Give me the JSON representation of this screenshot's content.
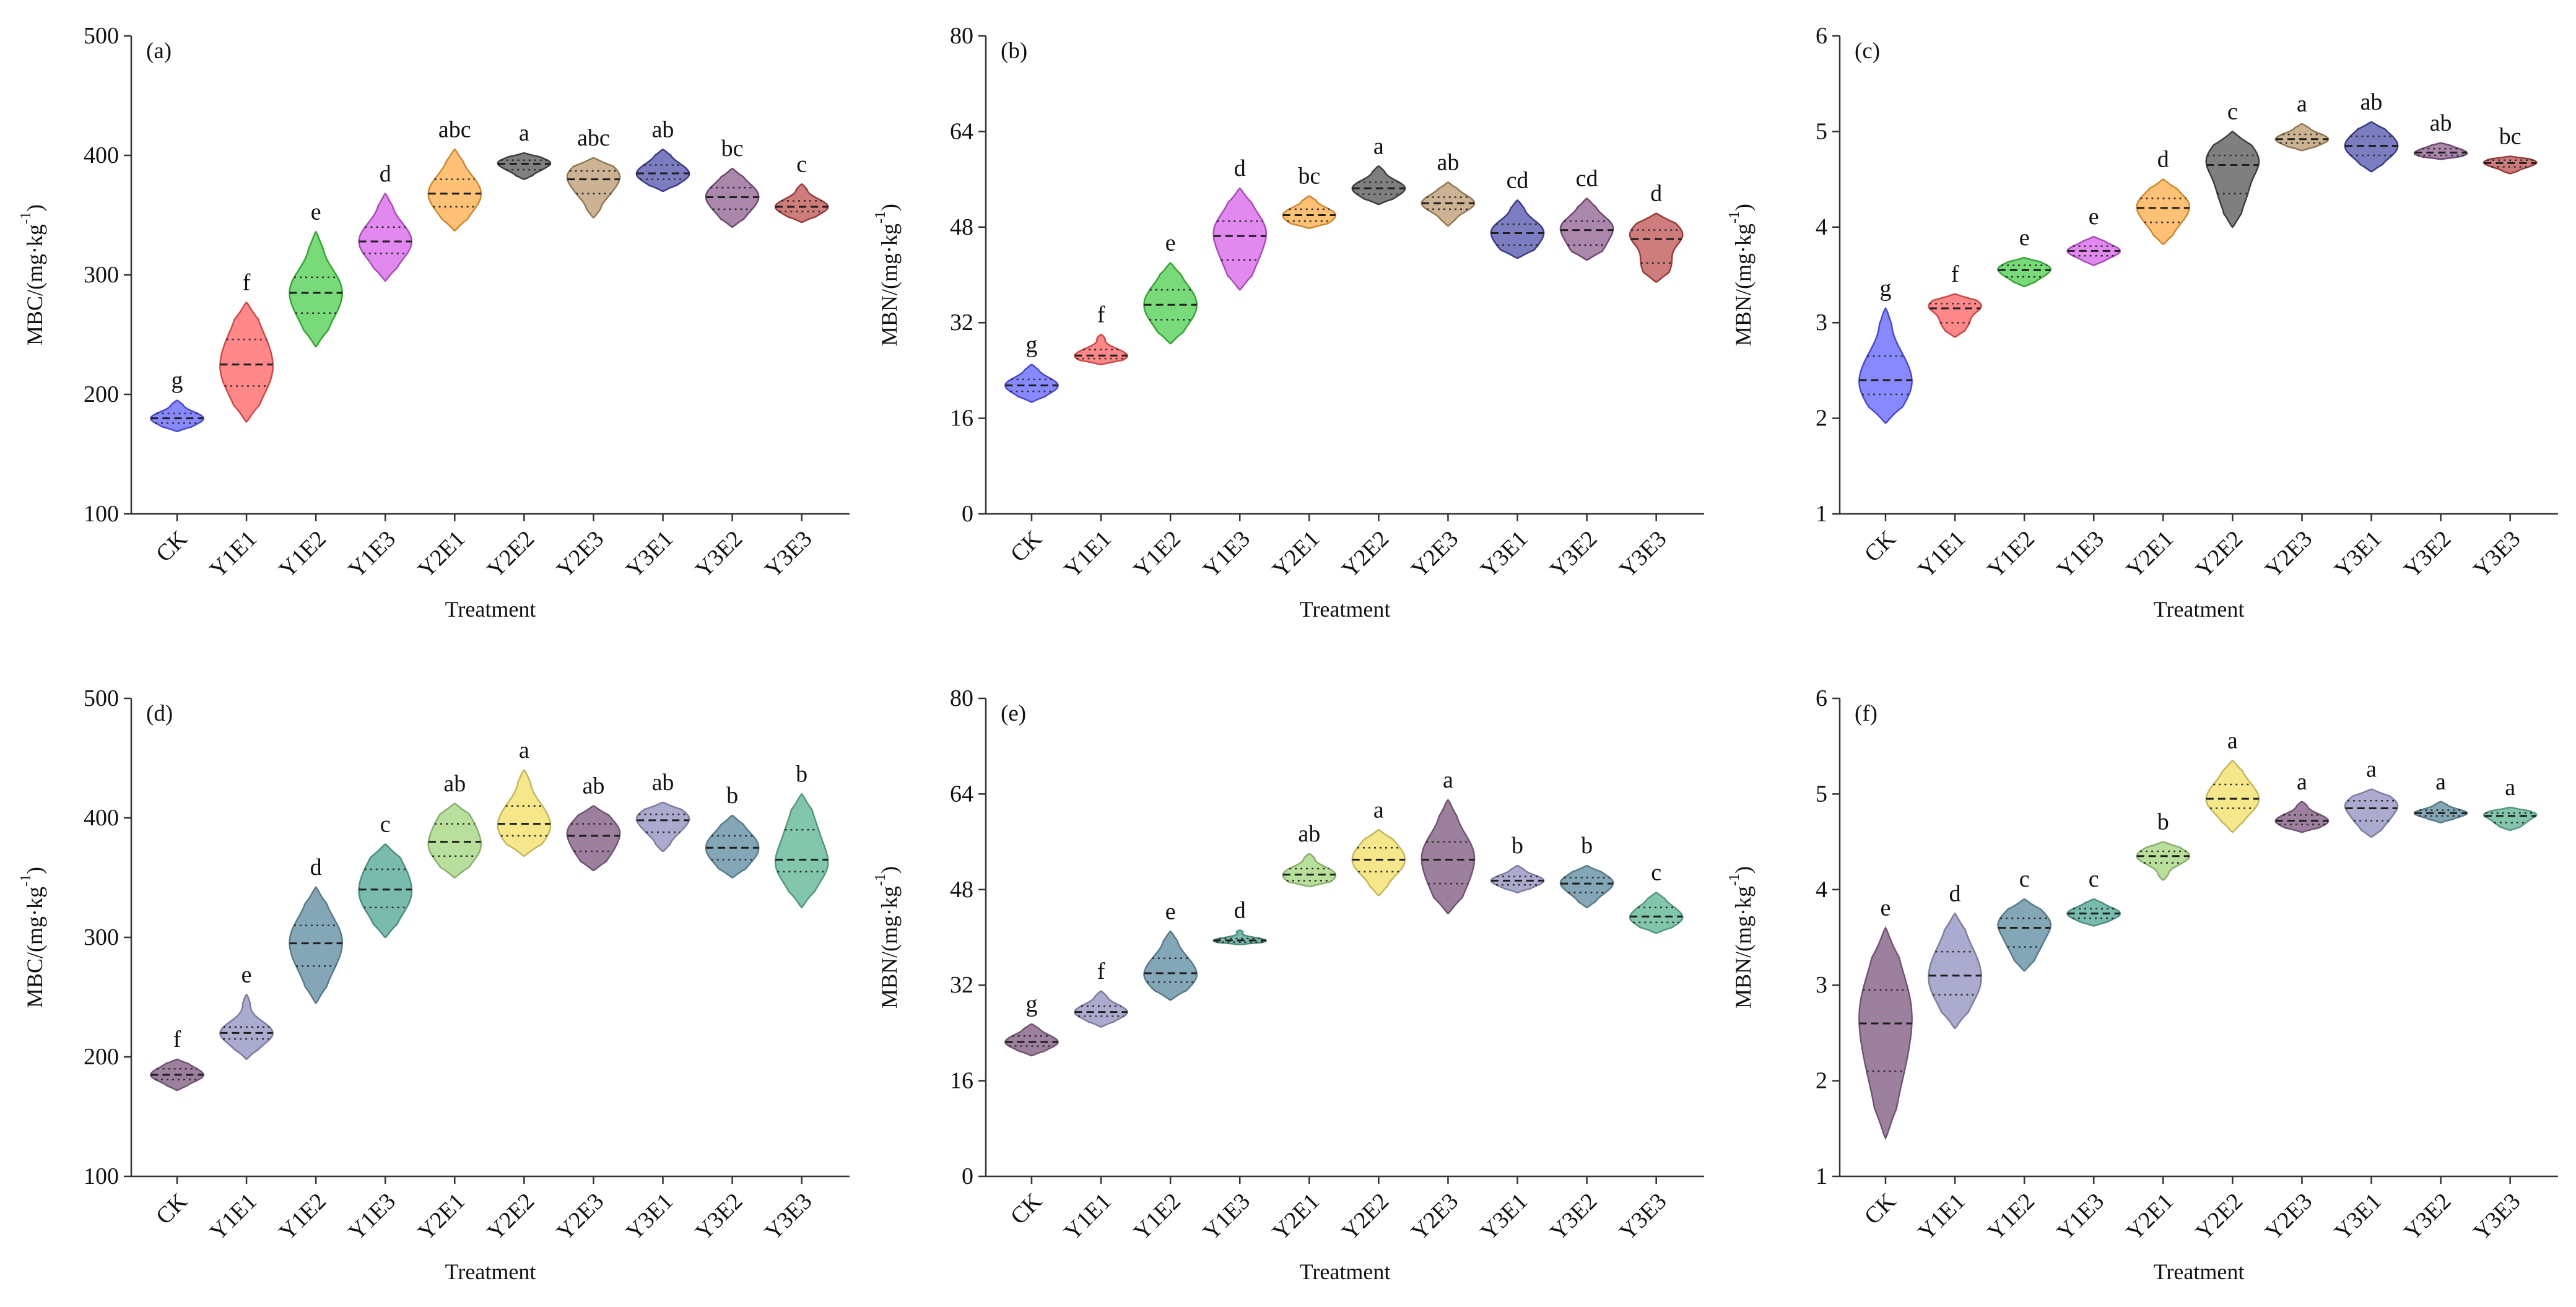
{
  "chart_data": [
    {
      "type": "area",
      "panel_label": "(a)",
      "xlabel": "Treatment",
      "ylabel": {
        "main": "MBC/(mg·kg",
        "sup": "-1",
        "end": ")"
      },
      "ylim": [
        100,
        500
      ],
      "yticks": [
        100,
        200,
        300,
        400,
        500
      ],
      "categories": [
        "CK",
        "Y1E1",
        "Y1E2",
        "Y1E3",
        "Y2E1",
        "Y2E2",
        "Y2E3",
        "Y3E1",
        "Y3E2",
        "Y3E3"
      ],
      "violins": [
        {
          "min": 169,
          "q1": 176,
          "median": 180,
          "q3": 184,
          "max": 195,
          "letter": "g",
          "color": "#5b5bff"
        },
        {
          "min": 177,
          "q1": 207,
          "median": 225,
          "q3": 246,
          "max": 277,
          "letter": "f",
          "color": "#ff5a5a"
        },
        {
          "min": 240,
          "q1": 268,
          "median": 285,
          "q3": 298,
          "max": 336,
          "letter": "e",
          "color": "#44cc44"
        },
        {
          "min": 295,
          "q1": 318,
          "median": 328,
          "q3": 340,
          "max": 368,
          "letter": "d",
          "color": "#d65ce8"
        },
        {
          "min": 337,
          "q1": 357,
          "median": 368,
          "q3": 380,
          "max": 405,
          "letter": "abc",
          "color": "#ffa940"
        },
        {
          "min": 380,
          "q1": 388,
          "median": 393,
          "q3": 396,
          "max": 402,
          "letter": "a",
          "color": "#4d4d4d"
        },
        {
          "min": 348,
          "q1": 368,
          "median": 380,
          "q3": 387,
          "max": 398,
          "letter": "abc",
          "color": "#b8956a"
        },
        {
          "min": 370,
          "q1": 380,
          "median": 385,
          "q3": 392,
          "max": 405,
          "letter": "ab",
          "color": "#4a4aa8"
        },
        {
          "min": 340,
          "q1": 355,
          "median": 365,
          "q3": 373,
          "max": 389,
          "letter": "bc",
          "color": "#8a5a8a"
        },
        {
          "min": 344,
          "q1": 353,
          "median": 357,
          "q3": 362,
          "max": 376,
          "letter": "c",
          "color": "#bb4a4a"
        }
      ]
    },
    {
      "type": "area",
      "panel_label": "(b)",
      "xlabel": "Treatment",
      "ylabel": {
        "main": "MBN/(mg·kg",
        "sup": "-1",
        "end": ")"
      },
      "ylim": [
        0,
        80
      ],
      "yticks": [
        0,
        16,
        32,
        48,
        64,
        80
      ],
      "categories": [
        "CK",
        "Y1E1",
        "Y1E2",
        "Y1E3",
        "Y2E1",
        "Y2E2",
        "Y2E3",
        "Y3E1",
        "Y3E2",
        "Y3E3"
      ],
      "violins": [
        {
          "min": 18.7,
          "q1": 20.5,
          "median": 21.5,
          "q3": 22.5,
          "max": 25,
          "letter": "g",
          "color": "#5b5bff"
        },
        {
          "min": 25,
          "q1": 26,
          "median": 26.5,
          "q3": 27.5,
          "max": 30,
          "letter": "f",
          "color": "#ff5a5a"
        },
        {
          "min": 28.5,
          "q1": 32.5,
          "median": 35,
          "q3": 37.5,
          "max": 42,
          "letter": "e",
          "color": "#44cc44"
        },
        {
          "min": 37.5,
          "q1": 42.5,
          "median": 46.5,
          "q3": 49,
          "max": 54.5,
          "letter": "d",
          "color": "#d65ce8"
        },
        {
          "min": 47.8,
          "q1": 49,
          "median": 50,
          "q3": 51,
          "max": 53.2,
          "letter": "bc",
          "color": "#ffa940"
        },
        {
          "min": 51.8,
          "q1": 53.5,
          "median": 54.5,
          "q3": 55.5,
          "max": 58.2,
          "letter": "a",
          "color": "#4d4d4d"
        },
        {
          "min": 48.2,
          "q1": 51,
          "median": 52,
          "q3": 53,
          "max": 55.5,
          "letter": "ab",
          "color": "#b8956a"
        },
        {
          "min": 42.8,
          "q1": 45,
          "median": 47,
          "q3": 48.5,
          "max": 52.5,
          "letter": "cd",
          "color": "#4a4aa8"
        },
        {
          "min": 42.5,
          "q1": 45,
          "median": 47.5,
          "q3": 49,
          "max": 52.8,
          "letter": "cd",
          "color": "#8a5a8a"
        },
        {
          "min": 38.8,
          "q1": 42,
          "median": 46,
          "q3": 47.5,
          "max": 50.3,
          "letter": "d",
          "color": "#bb4a4a"
        }
      ]
    },
    {
      "type": "area",
      "panel_label": "(c)",
      "xlabel": "Treatment",
      "ylabel": {
        "main": "MBN/(mg·kg",
        "sup": "-1",
        "end": ")"
      },
      "ylim": [
        1,
        6
      ],
      "yticks": [
        1,
        2,
        3,
        4,
        5,
        6
      ],
      "categories": [
        "CK",
        "Y1E1",
        "Y1E2",
        "Y1E3",
        "Y2E1",
        "Y2E2",
        "Y2E3",
        "Y3E1",
        "Y3E2",
        "Y3E3"
      ],
      "violins": [
        {
          "min": 1.95,
          "q1": 2.25,
          "median": 2.4,
          "q3": 2.65,
          "max": 3.15,
          "letter": "g",
          "color": "#5b5bff"
        },
        {
          "min": 2.85,
          "q1": 3.0,
          "median": 3.15,
          "q3": 3.2,
          "max": 3.3,
          "letter": "f",
          "color": "#ff5a5a"
        },
        {
          "min": 3.38,
          "q1": 3.48,
          "median": 3.55,
          "q3": 3.6,
          "max": 3.68,
          "letter": "e",
          "color": "#44cc44"
        },
        {
          "min": 3.6,
          "q1": 3.7,
          "median": 3.75,
          "q3": 3.8,
          "max": 3.9,
          "letter": "e",
          "color": "#d65ce8"
        },
        {
          "min": 3.82,
          "q1": 4.05,
          "median": 4.2,
          "q3": 4.3,
          "max": 4.5,
          "letter": "d",
          "color": "#ffa940"
        },
        {
          "min": 4.0,
          "q1": 4.35,
          "median": 4.65,
          "q3": 4.75,
          "max": 5.0,
          "letter": "c",
          "color": "#4d4d4d"
        },
        {
          "min": 4.8,
          "q1": 4.88,
          "median": 4.92,
          "q3": 4.97,
          "max": 5.08,
          "letter": "a",
          "color": "#b8956a"
        },
        {
          "min": 4.58,
          "q1": 4.75,
          "median": 4.85,
          "q3": 4.95,
          "max": 5.1,
          "letter": "ab",
          "color": "#4a4aa8"
        },
        {
          "min": 4.71,
          "q1": 4.75,
          "median": 4.78,
          "q3": 4.82,
          "max": 4.88,
          "letter": "ab",
          "color": "#8a5a8a"
        },
        {
          "min": 4.56,
          "q1": 4.63,
          "median": 4.67,
          "q3": 4.7,
          "max": 4.74,
          "letter": "bc",
          "color": "#bb4a4a"
        }
      ]
    },
    {
      "type": "area",
      "panel_label": "(d)",
      "xlabel": "Treatment",
      "ylabel": {
        "main": "MBC/(mg·kg",
        "sup": "-1",
        "end": ")"
      },
      "ylim": [
        100,
        500
      ],
      "yticks": [
        100,
        200,
        300,
        400,
        500
      ],
      "categories": [
        "CK",
        "Y1E1",
        "Y1E2",
        "Y1E3",
        "Y2E1",
        "Y2E2",
        "Y2E3",
        "Y3E1",
        "Y3E2",
        "Y3E3"
      ],
      "violins": [
        {
          "min": 172,
          "q1": 181,
          "median": 185,
          "q3": 190,
          "max": 198,
          "letter": "f",
          "color": "#8c6a8c"
        },
        {
          "min": 198,
          "q1": 215,
          "median": 220,
          "q3": 225,
          "max": 252,
          "letter": "e",
          "color": "#9c9cc8"
        },
        {
          "min": 245,
          "q1": 276,
          "median": 295,
          "q3": 310,
          "max": 342,
          "letter": "d",
          "color": "#6f98aa"
        },
        {
          "min": 300,
          "q1": 325,
          "median": 340,
          "q3": 357,
          "max": 378,
          "letter": "c",
          "color": "#62b0a0"
        },
        {
          "min": 350,
          "q1": 368,
          "median": 380,
          "q3": 395,
          "max": 412,
          "letter": "ab",
          "color": "#acd98a"
        },
        {
          "min": 368,
          "q1": 385,
          "median": 395,
          "q3": 410,
          "max": 440,
          "letter": "a",
          "color": "#f5e476"
        },
        {
          "min": 356,
          "q1": 372,
          "median": 385,
          "q3": 395,
          "max": 410,
          "letter": "ab",
          "color": "#8c6a8c"
        },
        {
          "min": 372,
          "q1": 388,
          "median": 398,
          "q3": 403,
          "max": 413,
          "letter": "ab",
          "color": "#9c9cc8"
        },
        {
          "min": 350,
          "q1": 365,
          "median": 375,
          "q3": 385,
          "max": 402,
          "letter": "b",
          "color": "#6f98aa"
        },
        {
          "min": 325,
          "q1": 355,
          "median": 365,
          "q3": 390,
          "max": 420,
          "letter": "b",
          "color": "#6cbc9e"
        }
      ]
    },
    {
      "type": "area",
      "panel_label": "(e)",
      "xlabel": "Treatment",
      "ylabel": {
        "main": "MBN/(mg·kg",
        "sup": "-1",
        "end": ")"
      },
      "ylim": [
        0,
        80
      ],
      "yticks": [
        0,
        16,
        32,
        48,
        64,
        80
      ],
      "categories": [
        "CK",
        "Y1E1",
        "Y1E2",
        "Y1E3",
        "Y2E1",
        "Y2E2",
        "Y2E3",
        "Y3E1",
        "Y3E2",
        "Y3E3"
      ],
      "violins": [
        {
          "min": 20.2,
          "q1": 21.8,
          "median": 22.5,
          "q3": 23.5,
          "max": 25.5,
          "letter": "g",
          "color": "#8c6a8c"
        },
        {
          "min": 25,
          "q1": 26.8,
          "median": 27.5,
          "q3": 28.5,
          "max": 31,
          "letter": "f",
          "color": "#9c9cc8"
        },
        {
          "min": 29.5,
          "q1": 32.5,
          "median": 34,
          "q3": 36.5,
          "max": 41,
          "letter": "e",
          "color": "#6f98aa"
        },
        {
          "min": 38.8,
          "q1": 39.2,
          "median": 39.5,
          "q3": 39.8,
          "max": 41.2,
          "letter": "d",
          "color": "#62b0a0"
        },
        {
          "min": 48.5,
          "q1": 49.5,
          "median": 50.5,
          "q3": 51.5,
          "max": 54,
          "letter": "ab",
          "color": "#acd98a"
        },
        {
          "min": 47,
          "q1": 51,
          "median": 53,
          "q3": 55,
          "max": 58,
          "letter": "a",
          "color": "#f5e476"
        },
        {
          "min": 44,
          "q1": 49,
          "median": 53,
          "q3": 56,
          "max": 63,
          "letter": "a",
          "color": "#8c6a8c"
        },
        {
          "min": 47.5,
          "q1": 48.8,
          "median": 49.5,
          "q3": 50.2,
          "max": 52,
          "letter": "b",
          "color": "#9c9cc8"
        },
        {
          "min": 45,
          "q1": 47.5,
          "median": 49,
          "q3": 50,
          "max": 52,
          "letter": "b",
          "color": "#6f98aa"
        },
        {
          "min": 40.7,
          "q1": 42.5,
          "median": 43.5,
          "q3": 45,
          "max": 47.5,
          "letter": "c",
          "color": "#6cbc9e"
        }
      ]
    },
    {
      "type": "area",
      "panel_label": "(f)",
      "xlabel": "Treatment",
      "ylabel": {
        "main": "MBN/(mg·kg",
        "sup": "-1",
        "end": ")"
      },
      "ylim": [
        1,
        6
      ],
      "yticks": [
        1,
        2,
        3,
        4,
        5,
        6
      ],
      "categories": [
        "CK",
        "Y1E1",
        "Y1E2",
        "Y1E3",
        "Y2E1",
        "Y2E2",
        "Y2E3",
        "Y3E1",
        "Y3E2",
        "Y3E3"
      ],
      "violins": [
        {
          "min": 1.4,
          "q1": 2.1,
          "median": 2.6,
          "q3": 2.95,
          "max": 3.6,
          "letter": "e",
          "color": "#8c6a8c"
        },
        {
          "min": 2.55,
          "q1": 2.9,
          "median": 3.1,
          "q3": 3.35,
          "max": 3.75,
          "letter": "d",
          "color": "#9c9cc8"
        },
        {
          "min": 3.15,
          "q1": 3.4,
          "median": 3.6,
          "q3": 3.7,
          "max": 3.9,
          "letter": "c",
          "color": "#6f98aa"
        },
        {
          "min": 3.62,
          "q1": 3.7,
          "median": 3.75,
          "q3": 3.8,
          "max": 3.9,
          "letter": "c",
          "color": "#62b0a0"
        },
        {
          "min": 4.1,
          "q1": 4.28,
          "median": 4.35,
          "q3": 4.4,
          "max": 4.5,
          "letter": "b",
          "color": "#acd98a"
        },
        {
          "min": 4.6,
          "q1": 4.85,
          "median": 4.95,
          "q3": 5.1,
          "max": 5.35,
          "letter": "a",
          "color": "#f5e476"
        },
        {
          "min": 4.6,
          "q1": 4.68,
          "median": 4.72,
          "q3": 4.78,
          "max": 4.92,
          "letter": "a",
          "color": "#8c6a8c"
        },
        {
          "min": 4.55,
          "q1": 4.72,
          "median": 4.85,
          "q3": 4.93,
          "max": 5.05,
          "letter": "a",
          "color": "#9c9cc8"
        },
        {
          "min": 4.7,
          "q1": 4.77,
          "median": 4.8,
          "q3": 4.83,
          "max": 4.92,
          "letter": "a",
          "color": "#6f98aa"
        },
        {
          "min": 4.62,
          "q1": 4.7,
          "median": 4.77,
          "q3": 4.8,
          "max": 4.86,
          "letter": "a",
          "color": "#6cbc9e"
        }
      ]
    }
  ]
}
